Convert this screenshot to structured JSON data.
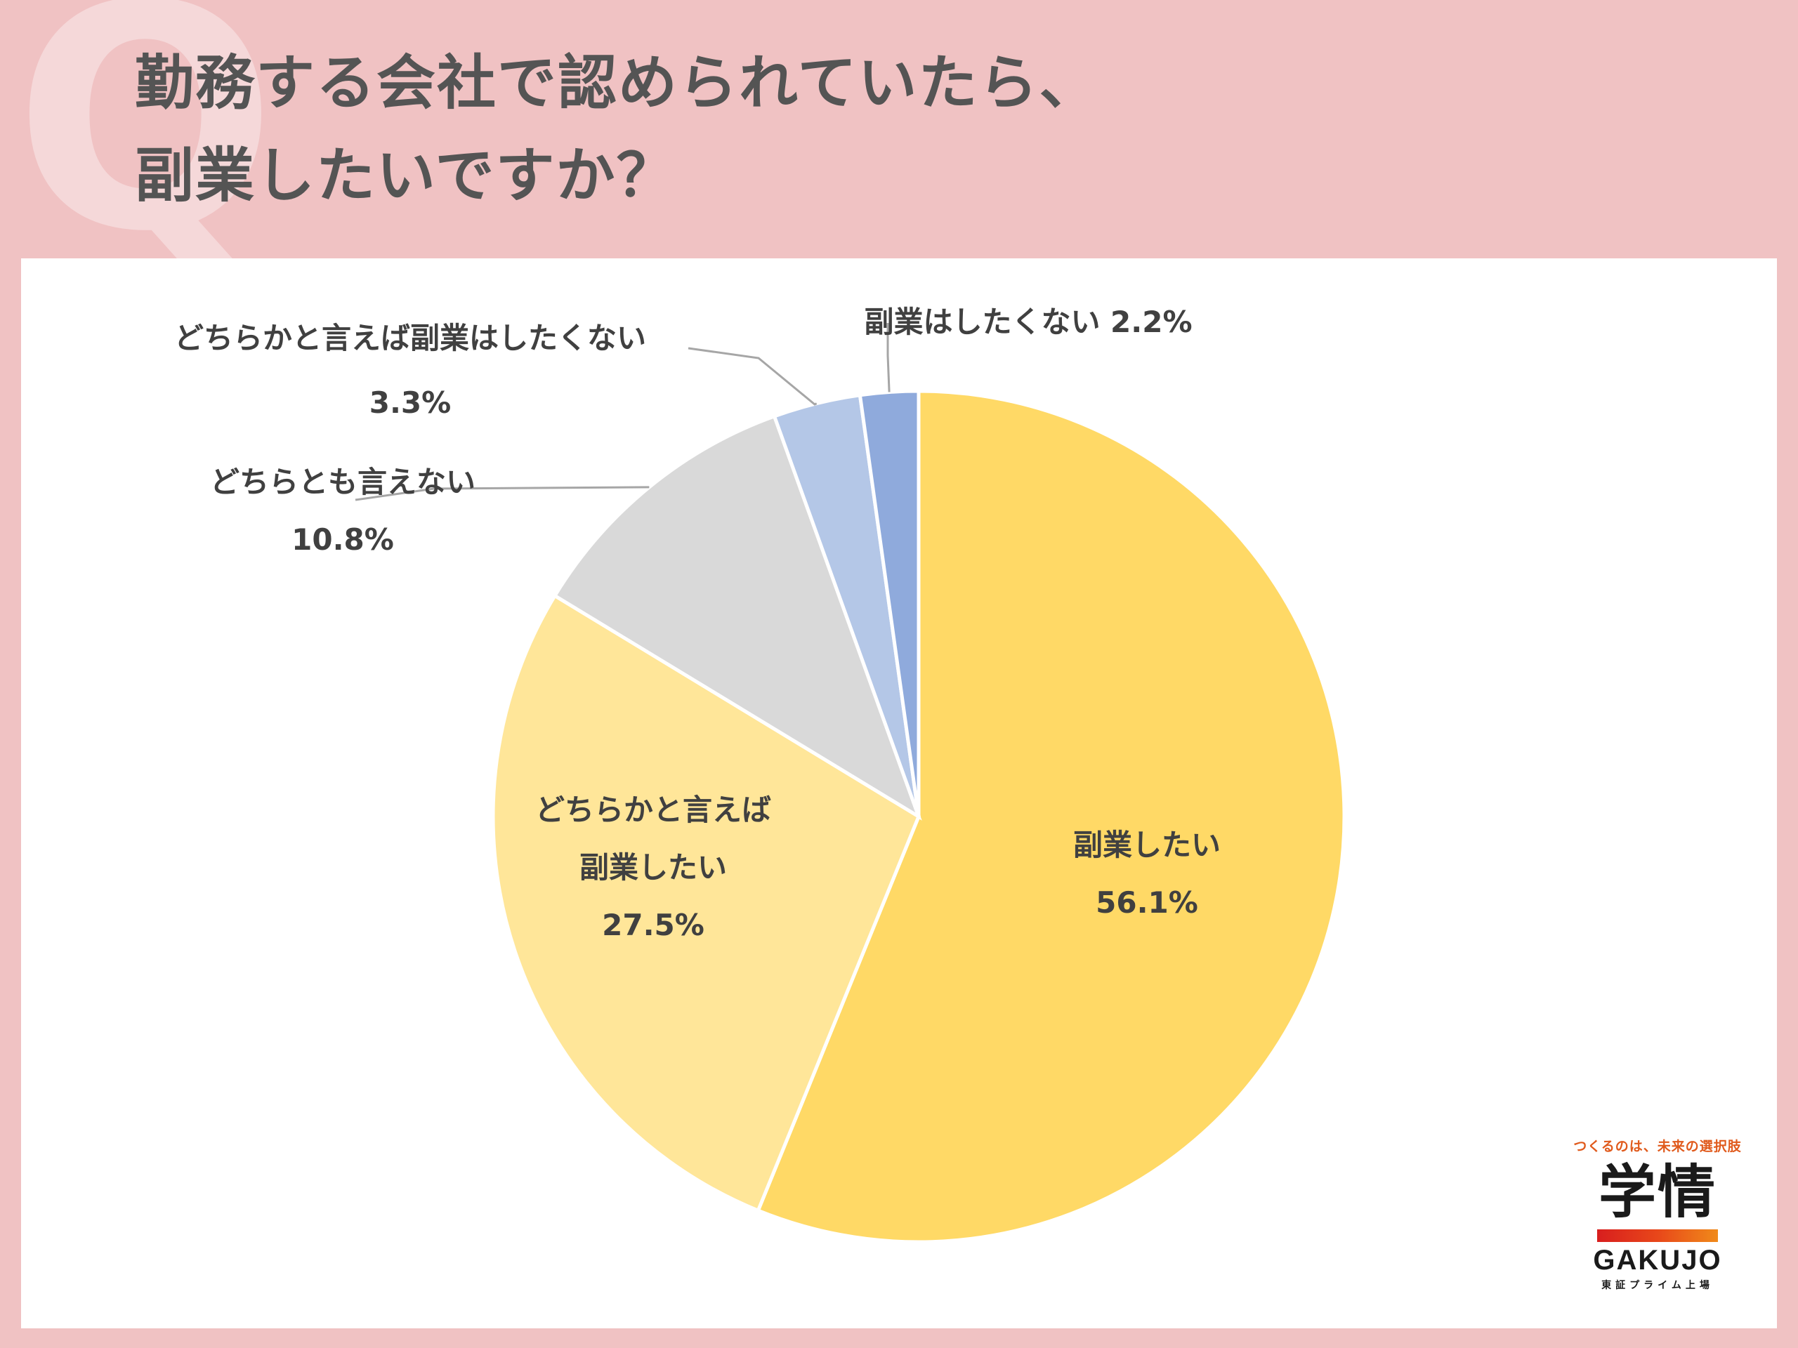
{
  "header": {
    "q_mark": "Q",
    "title_line1": "勤務する会社で認められていたら、",
    "title_line2": "副業したいですか？"
  },
  "chart_data": {
    "type": "pie",
    "title": "勤務する会社で認められていたら、副業したいですか？",
    "slices": [
      {
        "label": "副業したい",
        "value": 56.1,
        "value_label": "56.1%",
        "color": "#ffd966"
      },
      {
        "label": "どちらかと言えば副業したい",
        "value": 27.5,
        "value_label": "27.5%",
        "color": "#ffe699"
      },
      {
        "label": "どちらとも言えない",
        "value": 10.8,
        "value_label": "10.8%",
        "color": "#d9d9d9"
      },
      {
        "label": "どちらかと言えば副業はしたくない",
        "value": 3.3,
        "value_label": "3.3%",
        "color": "#b4c7e7"
      },
      {
        "label": "副業はしたくない",
        "value": 2.2,
        "value_label": "2.2%",
        "color": "#8faadc"
      }
    ],
    "label_lines": {
      "s0": [
        "副業したい",
        "56.1%"
      ],
      "s1": [
        "どちらかと言えば",
        "副業したい",
        "27.5%"
      ],
      "s2": [
        "どちらとも言えない",
        "10.8%"
      ],
      "s3": [
        "どちらかと言えば副業はしたくない",
        "3.3%"
      ],
      "s4": [
        "副業はしたくない 2.2%"
      ]
    }
  },
  "logo": {
    "tagline": "つくるのは、未来の選択肢",
    "mark": "学情",
    "name_en": "GAKUJO",
    "market": "東証プライム上場"
  }
}
